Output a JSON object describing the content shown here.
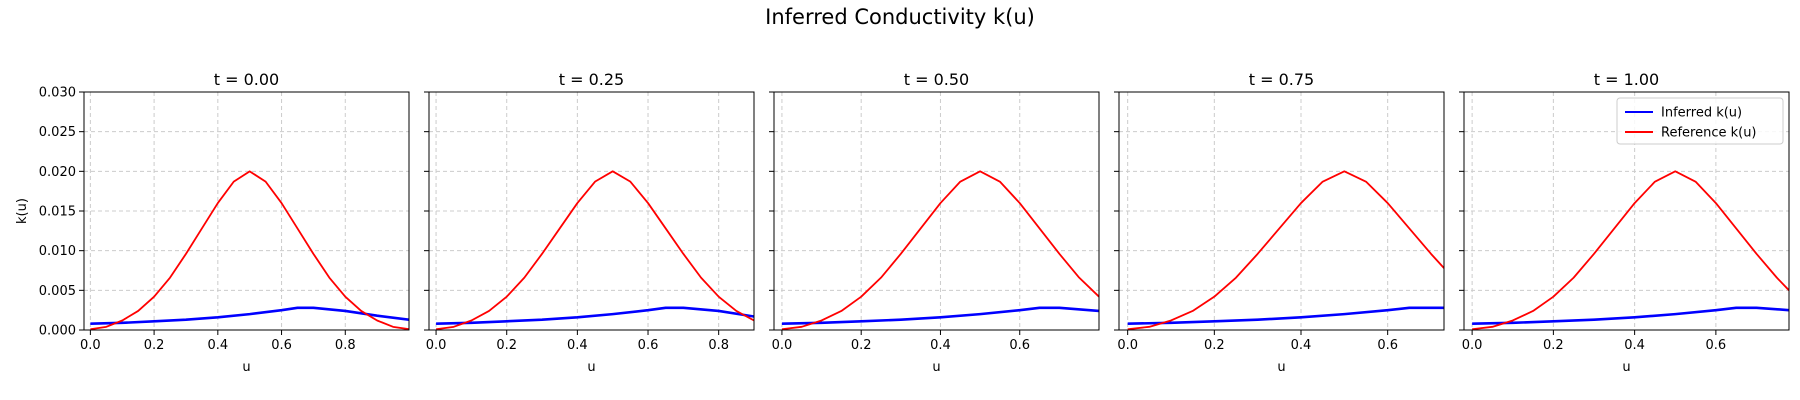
{
  "figure": {
    "title": "Inferred Conductivity k(u)"
  },
  "colors": {
    "inferred": "#0000ff",
    "reference": "#ff0000",
    "grid": "#cccccc",
    "axes": "#000000"
  },
  "chart_data": [
    {
      "type": "line",
      "title": "t = 0.00",
      "xlabel": "u",
      "ylabel": "k(u)",
      "xlim": [
        -0.02,
        1.0
      ],
      "ylim": [
        0,
        0.03
      ],
      "xticks": [
        "0.0",
        "0.2",
        "0.4",
        "0.6",
        "0.8"
      ],
      "yticks": [
        "0.000",
        "0.005",
        "0.010",
        "0.015",
        "0.020",
        "0.025",
        "0.030"
      ],
      "grid": true,
      "series": [
        {
          "name": "Inferred k(u)",
          "color": "#0000ff",
          "x": [
            0.0,
            0.1,
            0.2,
            0.3,
            0.4,
            0.5,
            0.6,
            0.65,
            0.7,
            0.8,
            0.9,
            1.0
          ],
          "y": [
            0.0008,
            0.0009,
            0.0011,
            0.0013,
            0.0016,
            0.002,
            0.0025,
            0.0028,
            0.0028,
            0.0024,
            0.0018,
            0.0013
          ]
        },
        {
          "name": "Reference k(u)",
          "color": "#ff0000",
          "x": [
            0.0,
            0.05,
            0.1,
            0.15,
            0.2,
            0.25,
            0.3,
            0.35,
            0.4,
            0.45,
            0.5,
            0.55,
            0.6,
            0.65,
            0.7,
            0.75,
            0.8,
            0.85,
            0.9,
            0.95,
            1.0
          ],
          "y": [
            0.0001,
            0.0004,
            0.0012,
            0.0024,
            0.0042,
            0.0066,
            0.0096,
            0.0128,
            0.016,
            0.0187,
            0.02,
            0.0187,
            0.016,
            0.0128,
            0.0096,
            0.0066,
            0.0042,
            0.0024,
            0.0012,
            0.0004,
            0.0001
          ]
        }
      ]
    },
    {
      "type": "line",
      "title": "t = 0.25",
      "xlabel": "u",
      "ylabel": "",
      "xlim": [
        -0.02,
        0.9
      ],
      "ylim": [
        0,
        0.03
      ],
      "xticks": [
        "0.0",
        "0.2",
        "0.4",
        "0.6",
        "0.8"
      ],
      "yticks": [],
      "grid": true,
      "series": [
        {
          "name": "Inferred k(u)",
          "color": "#0000ff",
          "x": [
            0.0,
            0.1,
            0.2,
            0.3,
            0.4,
            0.5,
            0.6,
            0.65,
            0.7,
            0.8,
            0.9
          ],
          "y": [
            0.0008,
            0.0009,
            0.0011,
            0.0013,
            0.0016,
            0.002,
            0.0025,
            0.0028,
            0.0028,
            0.0024,
            0.0017
          ]
        },
        {
          "name": "Reference k(u)",
          "color": "#ff0000",
          "x": [
            0.0,
            0.05,
            0.1,
            0.15,
            0.2,
            0.25,
            0.3,
            0.35,
            0.4,
            0.45,
            0.5,
            0.55,
            0.6,
            0.65,
            0.7,
            0.75,
            0.8,
            0.85,
            0.9
          ],
          "y": [
            0.0001,
            0.0004,
            0.0012,
            0.0024,
            0.0042,
            0.0066,
            0.0096,
            0.0128,
            0.016,
            0.0187,
            0.02,
            0.0187,
            0.016,
            0.0128,
            0.0096,
            0.0066,
            0.0042,
            0.0024,
            0.0012
          ]
        }
      ]
    },
    {
      "type": "line",
      "title": "t = 0.50",
      "xlabel": "u",
      "ylabel": "",
      "xlim": [
        -0.02,
        0.8
      ],
      "ylim": [
        0,
        0.03
      ],
      "xticks": [
        "0.0",
        "0.2",
        "0.4",
        "0.6"
      ],
      "yticks": [],
      "grid": true,
      "series": [
        {
          "name": "Inferred k(u)",
          "color": "#0000ff",
          "x": [
            0.0,
            0.1,
            0.2,
            0.3,
            0.4,
            0.5,
            0.6,
            0.65,
            0.7,
            0.8
          ],
          "y": [
            0.0008,
            0.0009,
            0.0011,
            0.0013,
            0.0016,
            0.002,
            0.0025,
            0.0028,
            0.0028,
            0.0024
          ]
        },
        {
          "name": "Reference k(u)",
          "color": "#ff0000",
          "x": [
            0.0,
            0.05,
            0.1,
            0.15,
            0.2,
            0.25,
            0.3,
            0.35,
            0.4,
            0.45,
            0.5,
            0.55,
            0.6,
            0.65,
            0.7,
            0.75,
            0.8
          ],
          "y": [
            0.0001,
            0.0004,
            0.0012,
            0.0024,
            0.0042,
            0.0066,
            0.0096,
            0.0128,
            0.016,
            0.0187,
            0.02,
            0.0187,
            0.016,
            0.0128,
            0.0096,
            0.0066,
            0.0042
          ]
        }
      ]
    },
    {
      "type": "line",
      "title": "t = 0.75",
      "xlabel": "u",
      "ylabel": "",
      "xlim": [
        -0.02,
        0.73
      ],
      "ylim": [
        0,
        0.03
      ],
      "xticks": [
        "0.0",
        "0.2",
        "0.4",
        "0.6"
      ],
      "yticks": [],
      "grid": true,
      "series": [
        {
          "name": "Inferred k(u)",
          "color": "#0000ff",
          "x": [
            0.0,
            0.1,
            0.2,
            0.3,
            0.4,
            0.5,
            0.6,
            0.65,
            0.73
          ],
          "y": [
            0.0008,
            0.0009,
            0.0011,
            0.0013,
            0.0016,
            0.002,
            0.0025,
            0.0028,
            0.0028
          ]
        },
        {
          "name": "Reference k(u)",
          "color": "#ff0000",
          "x": [
            0.0,
            0.05,
            0.1,
            0.15,
            0.2,
            0.25,
            0.3,
            0.35,
            0.4,
            0.45,
            0.5,
            0.55,
            0.6,
            0.65,
            0.7,
            0.73
          ],
          "y": [
            0.0001,
            0.0004,
            0.0012,
            0.0024,
            0.0042,
            0.0066,
            0.0096,
            0.0128,
            0.016,
            0.0187,
            0.02,
            0.0187,
            0.016,
            0.0128,
            0.0096,
            0.0078
          ]
        }
      ]
    },
    {
      "type": "line",
      "title": "t = 1.00",
      "xlabel": "u",
      "ylabel": "",
      "xlim": [
        -0.02,
        0.78
      ],
      "ylim": [
        0,
        0.03
      ],
      "xticks": [
        "0.0",
        "0.2",
        "0.4",
        "0.6"
      ],
      "yticks": [],
      "grid": true,
      "legend": "top-right",
      "series": [
        {
          "name": "Inferred k(u)",
          "color": "#0000ff",
          "x": [
            0.0,
            0.1,
            0.2,
            0.3,
            0.4,
            0.5,
            0.6,
            0.65,
            0.7,
            0.78
          ],
          "y": [
            0.0008,
            0.0009,
            0.0011,
            0.0013,
            0.0016,
            0.002,
            0.0025,
            0.0028,
            0.0028,
            0.0025
          ]
        },
        {
          "name": "Reference k(u)",
          "color": "#ff0000",
          "x": [
            0.0,
            0.05,
            0.1,
            0.15,
            0.2,
            0.25,
            0.3,
            0.35,
            0.4,
            0.45,
            0.5,
            0.55,
            0.6,
            0.65,
            0.7,
            0.75,
            0.78
          ],
          "y": [
            0.0001,
            0.0004,
            0.0012,
            0.0024,
            0.0042,
            0.0066,
            0.0096,
            0.0128,
            0.016,
            0.0187,
            0.02,
            0.0187,
            0.016,
            0.0128,
            0.0096,
            0.0066,
            0.005
          ]
        }
      ]
    }
  ]
}
